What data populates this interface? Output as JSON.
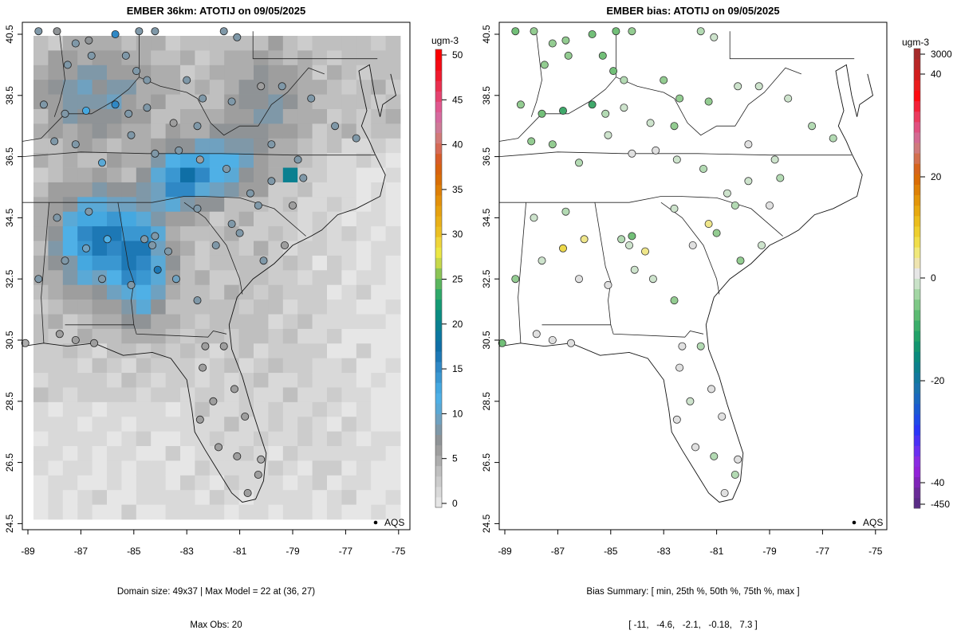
{
  "panels": [
    {
      "title": "EMBER 36km: ATOTIJ on 09/05/2025",
      "colorbar_unit": "ugm-3",
      "colorbar_ticks": [
        "50",
        "45",
        "40",
        "35",
        "30",
        "25",
        "20",
        "15",
        "10",
        "5",
        "0"
      ],
      "footer_line1": "Domain size: 49x37 | Max Model = 22 at (36, 27)",
      "footer_line2": "Max Obs: 20",
      "legend_label": "AQS"
    },
    {
      "title": "EMBER bias: ATOTIJ on 09/05/2025",
      "colorbar_unit": "ugm-3",
      "colorbar_ticks": [
        "3000",
        "40",
        "20",
        "0",
        "-20",
        "-40",
        "-450"
      ],
      "footer_line1": "Bias Summary: [ min, 25th %, 50th %, 75th %, max ]",
      "footer_line2": "[ -11,   -4.6,   -2.1,   -0.18,   7.3 ]",
      "legend_label": "AQS"
    }
  ],
  "chart_data": [
    {
      "type": "heatmap",
      "title": "EMBER 36km: ATOTIJ on 09/05/2025",
      "xlabel": "",
      "ylabel": "",
      "x_ticks": [
        "-89",
        "-87",
        "-85",
        "-83",
        "-81",
        "-79",
        "-77",
        "-75"
      ],
      "y_ticks": [
        "24.5",
        "26.5",
        "28.5",
        "30.5",
        "32.5",
        "34.5",
        "36.5",
        "38.5",
        "40.5"
      ],
      "xlim": [
        -89.2,
        -74.6
      ],
      "ylim": [
        24.1,
        40.8
      ],
      "colorbar": {
        "unit": "ugm-3",
        "range": [
          0,
          50
        ],
        "ticks": [
          0,
          5,
          10,
          15,
          20,
          25,
          30,
          35,
          40,
          45,
          50
        ]
      },
      "legend": {
        "entries": [
          "AQS"
        ],
        "position": "bottom-right"
      },
      "summary": {
        "domain_size": "49x37",
        "max_model": 22,
        "max_model_at": [
          36,
          27
        ],
        "max_obs": 20
      }
    },
    {
      "type": "scatter",
      "title": "EMBER bias: ATOTIJ on 09/05/2025",
      "xlabel": "",
      "ylabel": "",
      "x_ticks": [
        "-89",
        "-87",
        "-85",
        "-83",
        "-81",
        "-79",
        "-77",
        "-75"
      ],
      "y_ticks": [
        "24.5",
        "26.5",
        "28.5",
        "30.5",
        "32.5",
        "34.5",
        "36.5",
        "38.5",
        "40.5"
      ],
      "xlim": [
        -89.2,
        -74.6
      ],
      "ylim": [
        24.1,
        40.8
      ],
      "colorbar": {
        "unit": "ugm-3",
        "ticks": [
          3000,
          40,
          20,
          0,
          -20,
          -40,
          -450
        ]
      },
      "legend": {
        "entries": [
          "AQS"
        ],
        "position": "bottom-right"
      },
      "bias_summary": {
        "min": -11,
        "p25": -4.6,
        "p50": -2.1,
        "p75": -0.18,
        "max": 7.3
      }
    }
  ]
}
